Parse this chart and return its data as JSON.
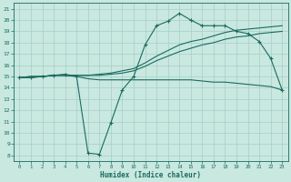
{
  "xlabel": "Humidex (Indice chaleur)",
  "ylabel": "",
  "bg_color": "#c8e8e0",
  "grid_color": "#a8cec8",
  "line_color": "#1a6b60",
  "xlim": [
    -0.5,
    23.5
  ],
  "ylim": [
    7.5,
    21.5
  ],
  "yticks": [
    8,
    9,
    10,
    11,
    12,
    13,
    14,
    15,
    16,
    17,
    18,
    19,
    20,
    21
  ],
  "xticks": [
    0,
    1,
    2,
    3,
    4,
    5,
    6,
    7,
    8,
    9,
    10,
    11,
    12,
    13,
    14,
    15,
    16,
    17,
    18,
    19,
    20,
    21,
    22,
    23
  ],
  "line1_x": [
    0,
    1,
    2,
    3,
    4,
    5,
    6,
    7,
    8,
    9,
    10,
    11,
    12,
    13,
    14,
    15,
    16,
    17,
    18,
    19,
    20,
    21,
    22,
    23
  ],
  "line1_y": [
    14.9,
    14.9,
    15.0,
    15.1,
    15.2,
    15.0,
    8.2,
    8.1,
    10.9,
    13.8,
    15.0,
    17.8,
    19.5,
    19.9,
    20.6,
    20.0,
    19.5,
    19.5,
    19.5,
    19.0,
    18.8,
    18.1,
    16.6,
    13.8
  ],
  "line2_x": [
    0,
    1,
    2,
    3,
    4,
    5,
    6,
    7,
    8,
    9,
    10,
    11,
    12,
    13,
    14,
    15,
    16,
    17,
    18,
    19,
    20,
    21,
    22,
    23
  ],
  "line2_y": [
    14.9,
    14.9,
    15.0,
    15.1,
    15.1,
    15.0,
    14.8,
    14.7,
    14.7,
    14.7,
    14.7,
    14.7,
    14.7,
    14.7,
    14.7,
    14.7,
    14.6,
    14.5,
    14.5,
    14.4,
    14.3,
    14.2,
    14.1,
    13.8
  ],
  "line3_x": [
    0,
    1,
    2,
    3,
    4,
    5,
    6,
    7,
    8,
    9,
    10,
    11,
    12,
    13,
    14,
    15,
    16,
    17,
    18,
    19,
    20,
    21,
    22,
    23
  ],
  "line3_y": [
    14.9,
    15.0,
    15.0,
    15.1,
    15.1,
    15.1,
    15.1,
    15.2,
    15.3,
    15.5,
    15.7,
    16.2,
    16.8,
    17.3,
    17.8,
    18.1,
    18.3,
    18.6,
    18.9,
    19.1,
    19.2,
    19.3,
    19.4,
    19.5
  ],
  "line4_x": [
    0,
    1,
    2,
    3,
    4,
    5,
    6,
    7,
    8,
    9,
    10,
    11,
    12,
    13,
    14,
    15,
    16,
    17,
    18,
    19,
    20,
    21,
    22,
    23
  ],
  "line4_y": [
    14.9,
    15.0,
    15.0,
    15.1,
    15.1,
    15.1,
    15.1,
    15.1,
    15.2,
    15.3,
    15.5,
    15.9,
    16.4,
    16.8,
    17.2,
    17.5,
    17.8,
    18.0,
    18.3,
    18.5,
    18.6,
    18.8,
    18.9,
    19.0
  ]
}
